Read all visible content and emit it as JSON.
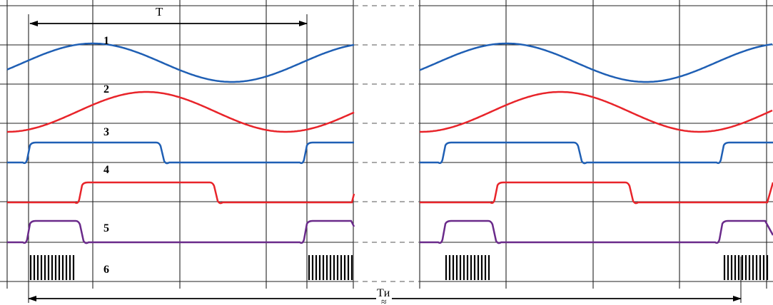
{
  "labels": {
    "period": "T",
    "pulse_period": "Tи",
    "curve_numbers": [
      "1",
      "2",
      "3",
      "4",
      "5",
      "6"
    ]
  },
  "colors": {
    "grid": "#222222",
    "dash": "#555555",
    "blue": "#1f5fb4",
    "red": "#e8242a",
    "purple": "#6a2a8a",
    "black": "#000000",
    "background": "#ffffff"
  }
}
